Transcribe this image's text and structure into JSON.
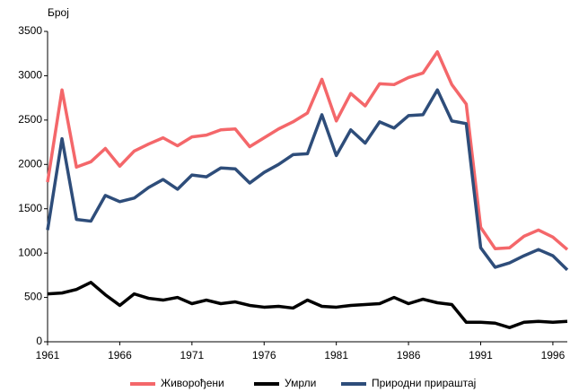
{
  "chart_data": {
    "type": "line",
    "ylabel": "Број",
    "x": [
      1961,
      1962,
      1963,
      1964,
      1965,
      1966,
      1967,
      1968,
      1969,
      1970,
      1971,
      1972,
      1973,
      1974,
      1975,
      1976,
      1977,
      1978,
      1979,
      1980,
      1981,
      1982,
      1983,
      1984,
      1985,
      1986,
      1987,
      1988,
      1989,
      1990,
      1991,
      1992,
      1993,
      1994,
      1995,
      1996,
      1997
    ],
    "series": [
      {
        "name": "Живорођени",
        "color": "#f4676a",
        "values": [
          1800,
          2840,
          1970,
          2030,
          2180,
          1980,
          2150,
          2230,
          2300,
          2210,
          2310,
          2330,
          2390,
          2400,
          2200,
          2300,
          2400,
          2480,
          2580,
          2960,
          2490,
          2800,
          2660,
          2910,
          2900,
          2980,
          3030,
          3270,
          2900,
          2680,
          1290,
          1050,
          1060,
          1190,
          1260,
          1180,
          1040
        ]
      },
      {
        "name": "Умрли",
        "color": "#000000",
        "values": [
          540,
          550,
          590,
          670,
          530,
          410,
          540,
          490,
          470,
          500,
          430,
          470,
          430,
          450,
          410,
          390,
          400,
          380,
          470,
          400,
          390,
          410,
          420,
          430,
          500,
          430,
          480,
          440,
          420,
          220,
          220,
          210,
          160,
          220,
          230,
          220,
          230
        ]
      },
      {
        "name": "Природни прираштај",
        "color": "#2e4d7a",
        "values": [
          1260,
          2290,
          1380,
          1360,
          1650,
          1580,
          1620,
          1740,
          1830,
          1720,
          1880,
          1860,
          1960,
          1950,
          1790,
          1910,
          2000,
          2110,
          2120,
          2560,
          2100,
          2390,
          2240,
          2480,
          2410,
          2550,
          2560,
          2840,
          2490,
          2460,
          1060,
          840,
          890,
          970,
          1040,
          970,
          810
        ]
      }
    ],
    "xlim": [
      1961,
      1997
    ],
    "xticks": [
      1961,
      1966,
      1971,
      1976,
      1981,
      1986,
      1991,
      1996
    ],
    "ylim": [
      0,
      3500
    ],
    "yticks": [
      0,
      500,
      1000,
      1500,
      2000,
      2500,
      3000,
      3500
    ],
    "legend": "bottom"
  }
}
